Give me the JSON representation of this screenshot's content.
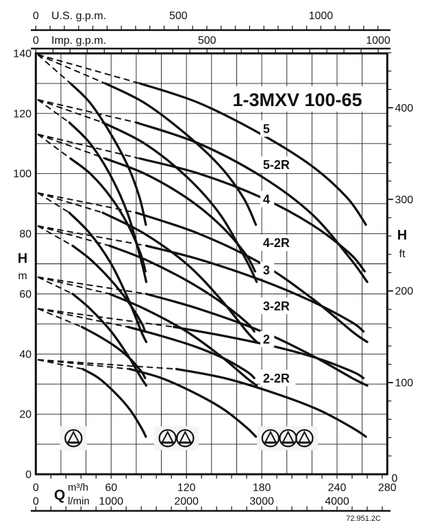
{
  "title": "1-3MXV 100-65",
  "drawing_code": "72.951.2C",
  "colors": {
    "ink": "#111111",
    "grid": "#1c1c1c",
    "background": "#ffffff",
    "marker_bg": "#f4f4f4"
  },
  "axes": {
    "us_gpm": {
      "name": "U.S. g.p.m.",
      "ticks": [
        0,
        500,
        1000
      ],
      "minor_step": 50,
      "m3h_per_gpm": 0.22712
    },
    "imp_gpm": {
      "name": "Imp. g.p.m.",
      "ticks": [
        0,
        500,
        1000
      ],
      "minor_step": 50,
      "m3h_per_gpm": 0.27277
    },
    "h_m": {
      "symbol": "H",
      "unit": "m",
      "ticks": [
        140,
        120,
        100,
        80,
        60,
        40,
        20,
        0
      ]
    },
    "h_ft": {
      "symbol": "H",
      "unit": "ft",
      "labeled_ticks": [
        400,
        300,
        200,
        100,
        0
      ],
      "minor_step_ft": 20,
      "m_per_ft": 0.3048
    },
    "q_m3h": {
      "symbol": "Q",
      "unit": "m³/h",
      "ticks": [
        0,
        60,
        120,
        180,
        240,
        280
      ]
    },
    "q_lmin": {
      "unit": "l/min",
      "ticks": [
        0,
        1000,
        2000,
        3000,
        4000
      ],
      "minor_step": 200,
      "m3h_per_lmin": 0.06
    }
  },
  "chart_data": {
    "type": "line",
    "title": "1-3MXV 100-65",
    "xlabel": "Q",
    "x_units": [
      "m³/h",
      "l/min",
      "U.S. g.p.m.",
      "Imp. g.p.m."
    ],
    "ylabel": "H",
    "y_units": [
      "m",
      "ft"
    ],
    "xlim": [
      0,
      280
    ],
    "ylim": [
      0,
      140
    ],
    "grid_step": {
      "x_m3h": 20,
      "y_m": 10
    },
    "pumps_in_parallel": [
      1,
      2,
      3
    ],
    "series": [
      {
        "name": "5",
        "shutoff_head_m": 140,
        "label_pos": [
          181,
          115
        ],
        "curve_3pumps": [
          [
            83,
            130
          ],
          [
            130,
            123.5
          ],
          [
            180,
            113
          ],
          [
            220,
            102.5
          ],
          [
            248,
            92
          ],
          [
            263,
            83
          ]
        ]
      },
      {
        "name": "5-2R",
        "shutoff_head_m": 125,
        "label_pos": [
          181,
          103
        ],
        "curve_3pumps": [
          [
            80,
            117
          ],
          [
            130,
            110
          ],
          [
            180,
            99
          ],
          [
            220,
            86.5
          ],
          [
            250,
            72
          ],
          [
            264,
            64
          ]
        ]
      },
      {
        "name": "4",
        "shutoff_head_m": 113.5,
        "label_pos": [
          181,
          91.5
        ],
        "curve_3pumps": [
          [
            83,
            105
          ],
          [
            130,
            100
          ],
          [
            180,
            92
          ],
          [
            220,
            83
          ],
          [
            250,
            73.5
          ],
          [
            262,
            67.5
          ]
        ]
      },
      {
        "name": "4-2R",
        "shutoff_head_m": 94,
        "label_pos": [
          181,
          77
        ],
        "curve_3pumps": [
          [
            80,
            87
          ],
          [
            130,
            80
          ],
          [
            180,
            70
          ],
          [
            220,
            58.5
          ],
          [
            252,
            47.5
          ],
          [
            264,
            44
          ]
        ]
      },
      {
        "name": "3",
        "shutoff_head_m": 83,
        "label_pos": [
          181,
          68
        ],
        "curve_3pumps": [
          [
            88,
            76
          ],
          [
            130,
            71.5
          ],
          [
            180,
            64.5
          ],
          [
            220,
            57.5
          ],
          [
            252,
            50.5
          ],
          [
            261,
            47.5
          ]
        ]
      },
      {
        "name": "3-2R",
        "shutoff_head_m": 66,
        "label_pos": [
          181,
          56
        ],
        "curve_3pumps": [
          [
            88,
            60
          ],
          [
            130,
            55
          ],
          [
            180,
            47.5
          ],
          [
            220,
            39.5
          ],
          [
            252,
            32
          ],
          [
            264,
            29.5
          ]
        ]
      },
      {
        "name": "2",
        "shutoff_head_m": 55.5,
        "label_pos": [
          181,
          45
        ],
        "curve_3pumps": [
          [
            110,
            49
          ],
          [
            150,
            46
          ],
          [
            190,
            42.5
          ],
          [
            225,
            38.5
          ],
          [
            253,
            34
          ],
          [
            261,
            32
          ]
        ]
      },
      {
        "name": "2-2R",
        "shutoff_head_m": 38.5,
        "label_pos": [
          181,
          32
        ],
        "curve_3pumps": [
          [
            112,
            35
          ],
          [
            150,
            32
          ],
          [
            190,
            27
          ],
          [
            225,
            21.5
          ],
          [
            252,
            15.5
          ],
          [
            263,
            12.5
          ]
        ]
      }
    ],
    "pump_count_markers": [
      {
        "count": 1,
        "q_positions": [
          30
        ],
        "head_m": 12
      },
      {
        "count": 2,
        "q_positions": [
          105,
          119
        ],
        "head_m": 12
      },
      {
        "count": 3,
        "q_positions": [
          187,
          201,
          214
        ],
        "head_m": 12
      }
    ]
  }
}
